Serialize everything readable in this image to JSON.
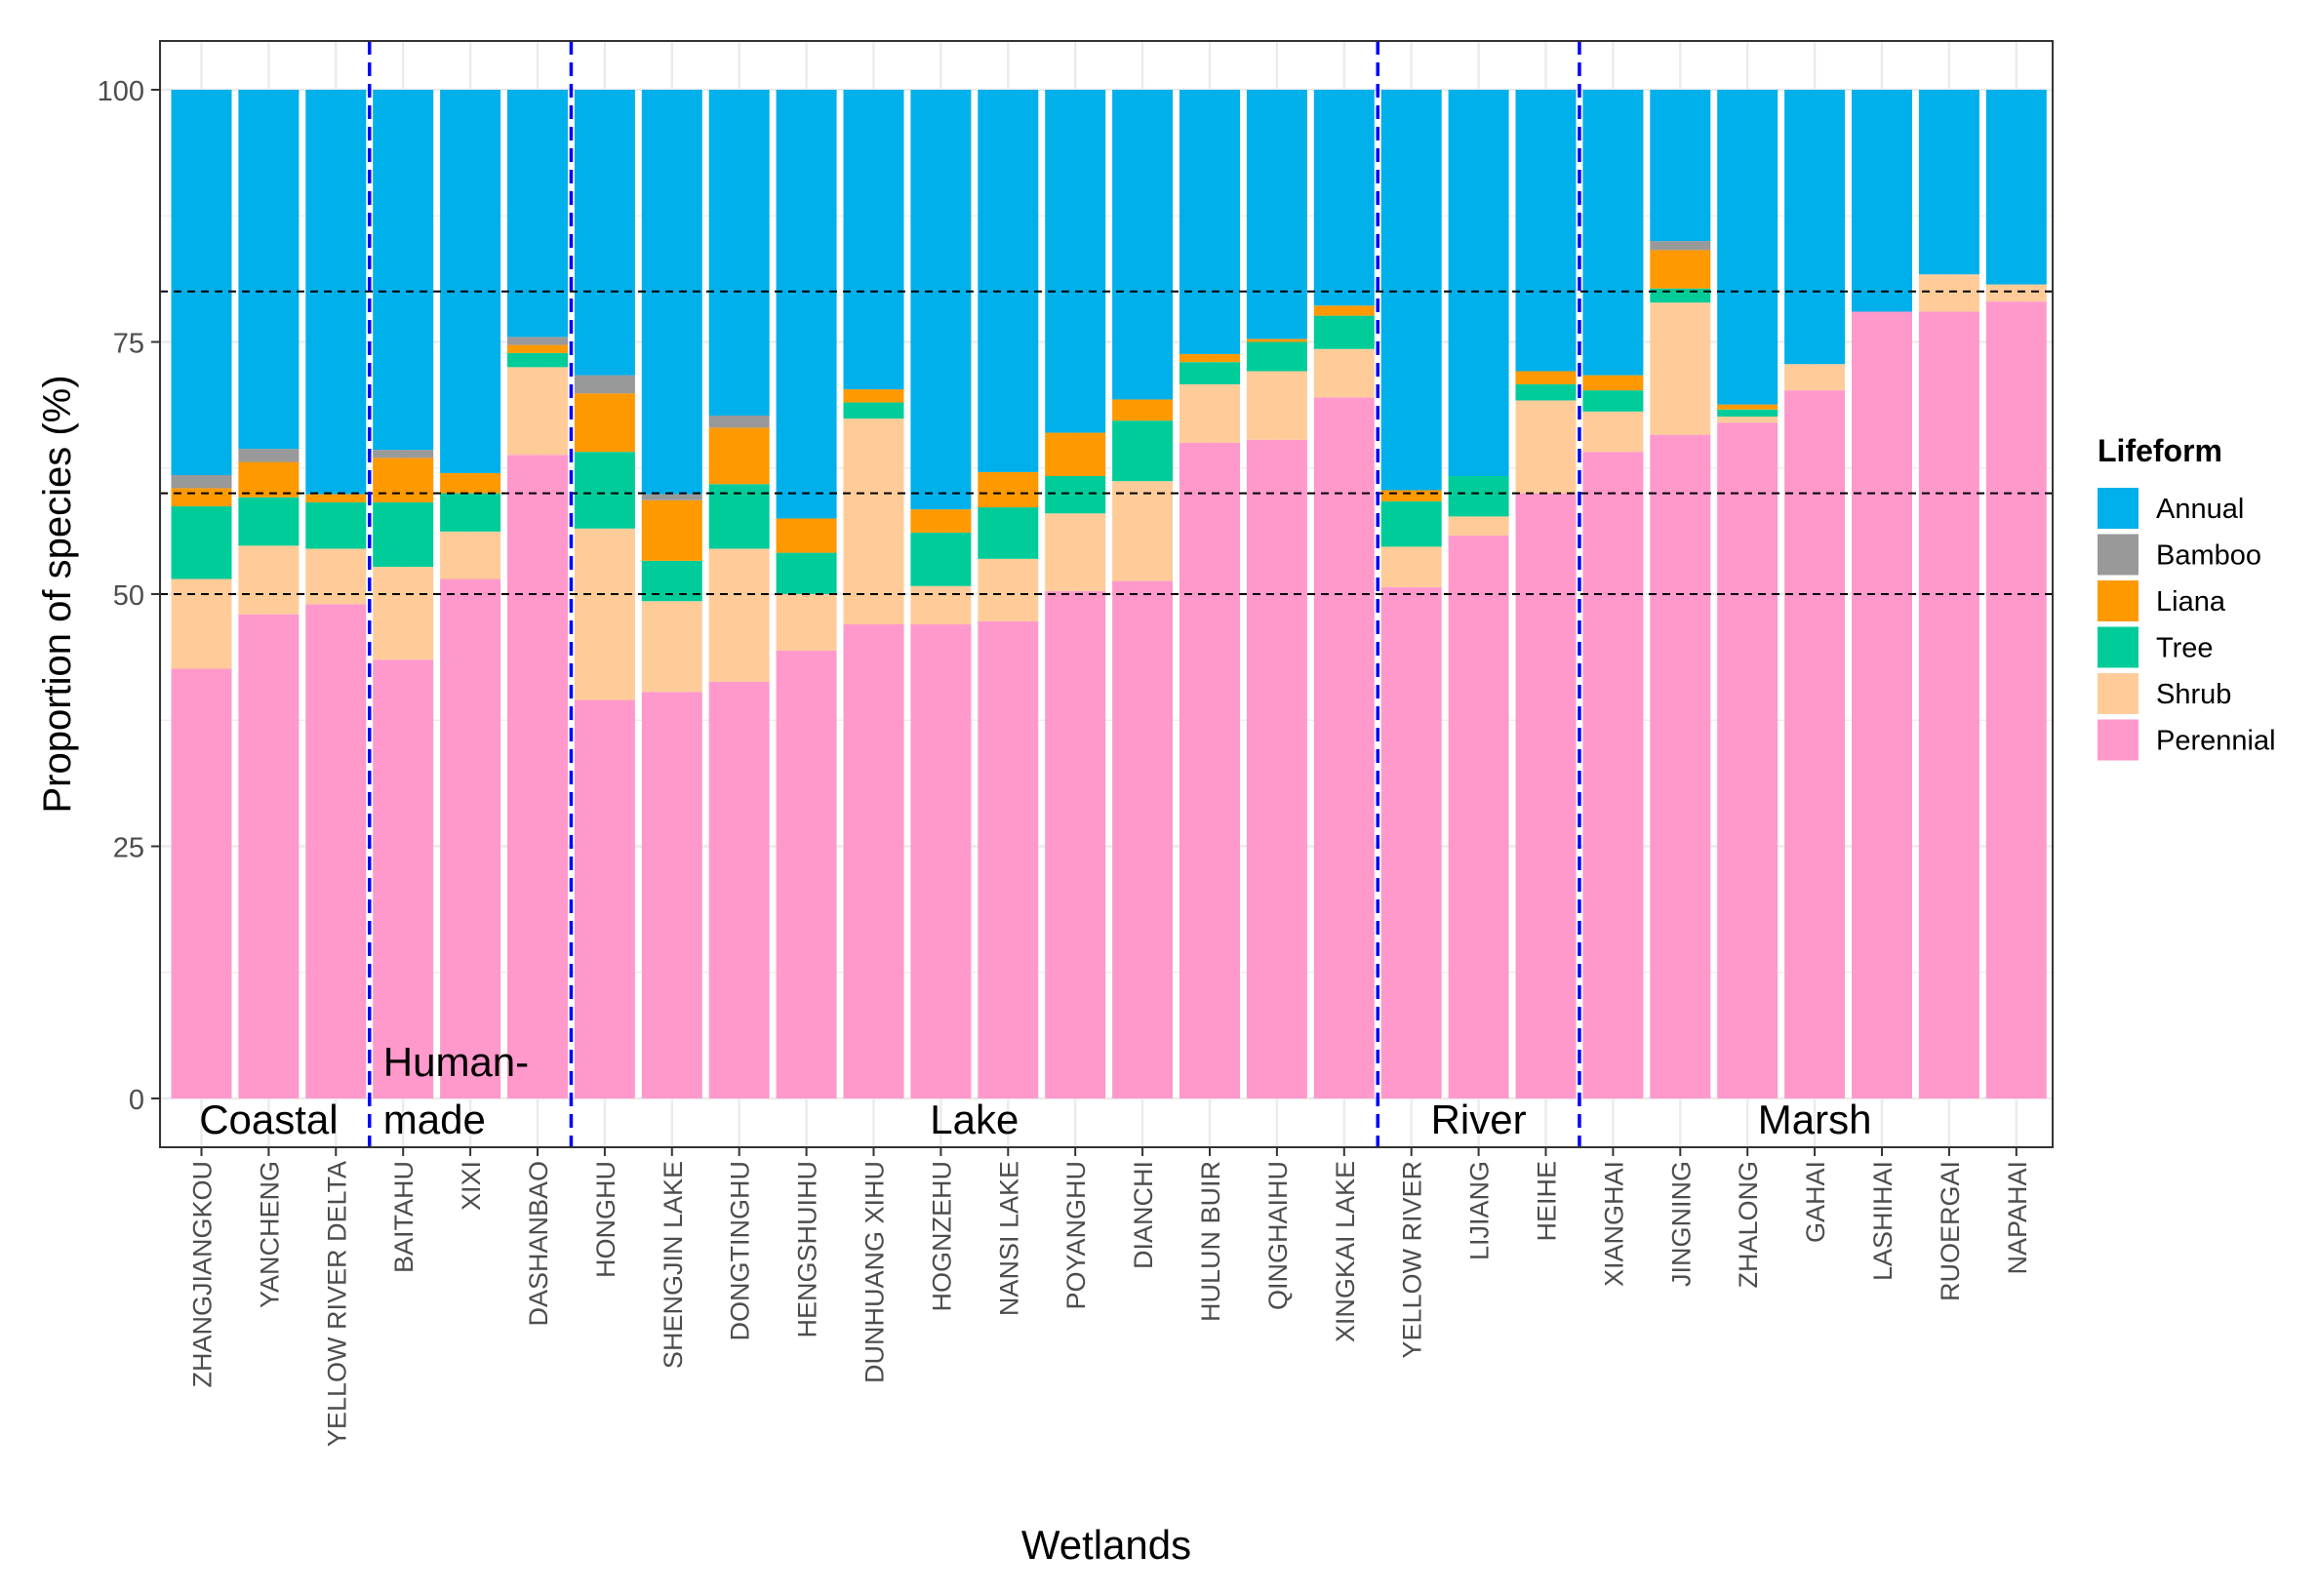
{
  "chart_data": {
    "type": "bar",
    "stacked": true,
    "xlabel": "Wetlands",
    "ylabel": "Proportion of species (%)",
    "ylim": [
      0,
      100
    ],
    "yticks": [
      "0",
      "25",
      "50",
      "75",
      "100"
    ],
    "reference_lines": [
      50,
      60,
      80
    ],
    "categories": [
      "ZHANGJIANGKOU",
      "YANCHENG",
      "YELLOW RIVER DELTA",
      "BAITAHU",
      "XIXI",
      "DASHANBAO",
      "HONGHU",
      "SHENGJIN LAKE",
      "DONGTINGHU",
      "HENGSHUIHU",
      "DUNHUANG XIHU",
      "HOGNZEHU",
      "NANSI LAKE",
      "POYANGHU",
      "DIANCHI",
      "HULUN BUIR",
      "QINGHAIHU",
      "XINGKAI LAKE",
      "YELLOW RIVER",
      "LIJIANG",
      "HEIHE",
      "XIANGHAI",
      "JINGNING",
      "ZHALONG",
      "GAHAI",
      "LASHIHAI",
      "RUOERGAI",
      "NAPAHAI"
    ],
    "series": [
      {
        "name": "Perennial",
        "color": "#ff99cc",
        "values": [
          42.6,
          48.0,
          49.0,
          43.5,
          51.5,
          63.8,
          39.5,
          40.3,
          41.3,
          44.4,
          47.0,
          47.0,
          47.3,
          50.3,
          51.3,
          65.0,
          65.3,
          69.5,
          50.7,
          55.8,
          60.0,
          64.1,
          65.8,
          67.0,
          70.2,
          78.0,
          78.0,
          79.0
        ]
      },
      {
        "name": "Shrub",
        "color": "#ffcc99",
        "values": [
          8.9,
          6.8,
          5.5,
          9.2,
          4.7,
          8.7,
          17.0,
          9.0,
          13.2,
          5.6,
          20.4,
          3.8,
          6.2,
          7.7,
          9.9,
          5.8,
          6.8,
          4.8,
          4.0,
          1.9,
          9.2,
          4.0,
          13.1,
          0.6,
          2.6,
          0,
          3.7,
          1.7
        ]
      },
      {
        "name": "Tree",
        "color": "#00cc99",
        "values": [
          7.2,
          4.8,
          4.6,
          6.4,
          3.8,
          1.4,
          7.6,
          4.0,
          6.4,
          4.1,
          1.6,
          5.3,
          5.1,
          3.7,
          6.0,
          2.2,
          2.9,
          3.3,
          4.5,
          4.0,
          1.6,
          2.1,
          1.4,
          0.7,
          0,
          0,
          0,
          0
        ]
      },
      {
        "name": "Liana",
        "color": "#ff9900",
        "values": [
          1.8,
          3.5,
          0.8,
          4.4,
          2.0,
          0.8,
          5.8,
          6.0,
          5.6,
          3.4,
          1.3,
          2.3,
          3.5,
          4.3,
          2.1,
          0.8,
          0.3,
          1.0,
          1.1,
          0,
          1.3,
          1.5,
          3.8,
          0.5,
          0,
          0,
          0,
          0
        ]
      },
      {
        "name": "Bamboo",
        "color": "#999999",
        "values": [
          1.3,
          1.3,
          0,
          0.8,
          0,
          0.8,
          1.8,
          0.6,
          1.2,
          0,
          0,
          0,
          0,
          0,
          0,
          0,
          0,
          0,
          0,
          0,
          0,
          0,
          0.9,
          0,
          0,
          0,
          0,
          0
        ]
      },
      {
        "name": "Annual",
        "color": "#00b0eb",
        "values": [
          38.2,
          35.6,
          40.1,
          35.7,
          38.0,
          24.5,
          28.3,
          40.1,
          32.3,
          42.5,
          29.7,
          41.6,
          37.9,
          34.0,
          30.7,
          26.2,
          24.7,
          21.4,
          39.7,
          38.3,
          27.9,
          28.3,
          15.0,
          31.2,
          27.2,
          22.0,
          18.3,
          19.3
        ]
      }
    ],
    "groups": [
      {
        "label_lines": [
          "Coastal"
        ],
        "start": 0,
        "end": 2
      },
      {
        "label_lines": [
          "Human-",
          "made"
        ],
        "start": 3,
        "end": 5
      },
      {
        "label_lines": [
          "Lake"
        ],
        "start": 6,
        "end": 17
      },
      {
        "label_lines": [
          "River"
        ],
        "start": 18,
        "end": 20
      },
      {
        "label_lines": [
          "Marsh"
        ],
        "start": 21,
        "end": 27
      }
    ],
    "legend": {
      "title": "Lifeform",
      "position": "right",
      "entries": [
        "Annual",
        "Bamboo",
        "Liana",
        "Tree",
        "Shrub",
        "Perennial"
      ]
    }
  },
  "colors": {
    "group_divider": "#0000ff",
    "reference_line": "#000000",
    "panel_border": "#333333",
    "grid": "#ebebeb"
  }
}
